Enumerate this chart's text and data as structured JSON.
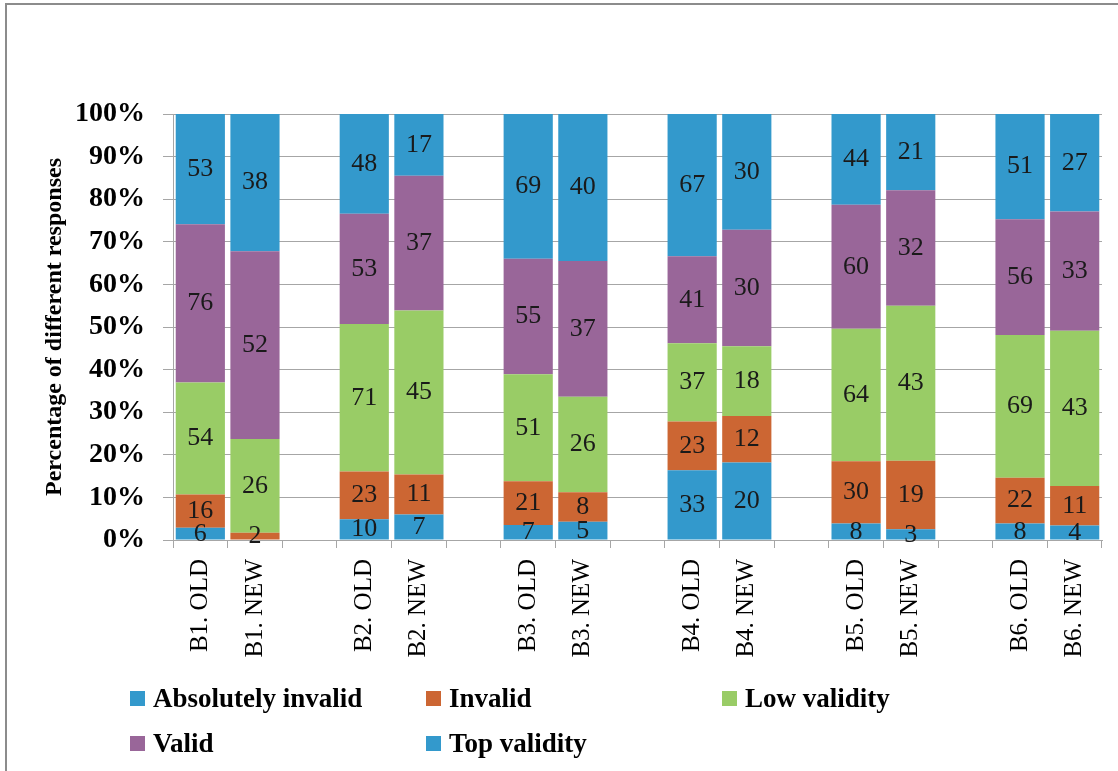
{
  "chart_data": {
    "type": "bar",
    "stacked": true,
    "ylabel": "Percentage of different responses",
    "categories": [
      "B1. OLD",
      "B1. NEW",
      null,
      "B2. OLD",
      "B2. NEW",
      null,
      "B3. OLD",
      "B3. NEW",
      null,
      "B4. OLD",
      "B4. NEW",
      null,
      "B5. OLD",
      "B5. NEW",
      null,
      "B6. OLD",
      "B6. NEW"
    ],
    "series": [
      {
        "name": "Absolutely invalid",
        "color": "#3399cc",
        "values": [
          2.9,
          0,
          null,
          4.9,
          6.0,
          null,
          3.5,
          4.3,
          null,
          16.4,
          18.2,
          null,
          3.9,
          2.5,
          null,
          3.9,
          3.4
        ]
      },
      {
        "name": "Invalid",
        "color": "#cc6633",
        "values": [
          7.8,
          1.7,
          null,
          11.2,
          9.4,
          null,
          10.3,
          6.9,
          null,
          11.4,
          10.9,
          null,
          14.6,
          16.1,
          null,
          10.7,
          9.3
        ]
      },
      {
        "name": "Low validity",
        "color": "#99cc66",
        "values": [
          26.3,
          22.0,
          null,
          34.6,
          38.5,
          null,
          25.1,
          22.4,
          null,
          18.4,
          16.4,
          null,
          31.1,
          36.4,
          null,
          33.5,
          36.4
        ]
      },
      {
        "name": "Valid",
        "color": "#996699",
        "values": [
          37.1,
          44.1,
          null,
          25.9,
          31.6,
          null,
          27.1,
          31.9,
          null,
          20.4,
          27.3,
          null,
          29.1,
          27.1,
          null,
          27.2,
          28.0
        ]
      },
      {
        "name": "Top validity",
        "color": "#3399cc",
        "values": [
          25.9,
          32.2,
          null,
          23.4,
          14.5,
          null,
          34.0,
          34.5,
          null,
          33.4,
          27.2,
          null,
          21.3,
          17.9,
          null,
          24.7,
          22.9
        ]
      }
    ],
    "ylim": [
      0,
      100
    ],
    "yticks": [
      {
        "value": 0,
        "label": "0%"
      },
      {
        "value": 10,
        "label": "10%"
      },
      {
        "value": 20,
        "label": "20%"
      },
      {
        "value": 30,
        "label": "30%"
      },
      {
        "value": 40,
        "label": "40%"
      },
      {
        "value": 50,
        "label": "50%"
      },
      {
        "value": 60,
        "label": "60%"
      },
      {
        "value": 70,
        "label": "70%"
      },
      {
        "value": 80,
        "label": "80%"
      },
      {
        "value": 90,
        "label": "90%"
      },
      {
        "value": 100,
        "label": "100%"
      }
    ],
    "annotations": [
      {
        "text": "6",
        "x": "B1. OLD",
        "y": 2.9
      },
      {
        "text": "16",
        "x": "B1. OLD",
        "y": 10.7
      },
      {
        "text": "54",
        "x": "B1. OLD",
        "y": 37.0
      },
      {
        "text": "76",
        "x": "B1. OLD",
        "y": 74.1
      },
      {
        "text": "53",
        "x": "B1. OLD",
        "y": 100
      },
      {
        "text": "2",
        "x": "B1. NEW",
        "y": 1.7
      },
      {
        "text": "26",
        "x": "B1. NEW",
        "y": 23.7
      },
      {
        "text": "52",
        "x": "B1. NEW",
        "y": 67.8
      },
      {
        "text": "38",
        "x": "B1. NEW",
        "y": 100
      },
      {
        "text": "10",
        "x": "B2. OLD",
        "y": 4.9
      },
      {
        "text": "23",
        "x": "B2. OLD",
        "y": 16.1
      },
      {
        "text": "71",
        "x": "B2. OLD",
        "y": 50.7
      },
      {
        "text": "53",
        "x": "B2. OLD",
        "y": 76.6
      },
      {
        "text": "48",
        "x": "B2. OLD",
        "y": 100
      },
      {
        "text": "7",
        "x": "B2. NEW",
        "y": 6.0
      },
      {
        "text": "11",
        "x": "B2. NEW",
        "y": 15.4
      },
      {
        "text": "45",
        "x": "B2. NEW",
        "y": 53.9
      },
      {
        "text": "37",
        "x": "B2. NEW",
        "y": 85.5
      },
      {
        "text": "17",
        "x": "B2. NEW",
        "y": 100
      },
      {
        "text": "7",
        "x": "B3. OLD",
        "y": 3.5
      },
      {
        "text": "21",
        "x": "B3. OLD",
        "y": 13.8
      },
      {
        "text": "51",
        "x": "B3. OLD",
        "y": 38.9
      },
      {
        "text": "55",
        "x": "B3. OLD",
        "y": 66.0
      },
      {
        "text": "69",
        "x": "B3. OLD",
        "y": 100
      },
      {
        "text": "5",
        "x": "B3. NEW",
        "y": 4.3
      },
      {
        "text": "8",
        "x": "B3. NEW",
        "y": 11.2
      },
      {
        "text": "26",
        "x": "B3. NEW",
        "y": 33.6
      },
      {
        "text": "37",
        "x": "B3. NEW",
        "y": 65.5
      },
      {
        "text": "40",
        "x": "B3. NEW",
        "y": 100
      },
      {
        "text": "33",
        "x": "B4. OLD",
        "y": 16.4
      },
      {
        "text": "23",
        "x": "B4. OLD",
        "y": 27.8
      },
      {
        "text": "37",
        "x": "B4. OLD",
        "y": 46.2
      },
      {
        "text": "41",
        "x": "B4. OLD",
        "y": 66.6
      },
      {
        "text": "67",
        "x": "B4. OLD",
        "y": 100
      },
      {
        "text": "20",
        "x": "B4. NEW",
        "y": 18.2
      },
      {
        "text": "12",
        "x": "B4. NEW",
        "y": 29.1
      },
      {
        "text": "18",
        "x": "B4. NEW",
        "y": 45.5
      },
      {
        "text": "30",
        "x": "B4. NEW",
        "y": 72.8
      },
      {
        "text": "30",
        "x": "B4. NEW",
        "y": 100
      },
      {
        "text": "8",
        "x": "B5. OLD",
        "y": 3.9
      },
      {
        "text": "30",
        "x": "B5. OLD",
        "y": 18.5
      },
      {
        "text": "64",
        "x": "B5. OLD",
        "y": 49.6
      },
      {
        "text": "60",
        "x": "B5. OLD",
        "y": 78.7
      },
      {
        "text": "44",
        "x": "B5. OLD",
        "y": 100
      },
      {
        "text": "3",
        "x": "B5. NEW",
        "y": 2.5
      },
      {
        "text": "19",
        "x": "B5. NEW",
        "y": 18.6
      },
      {
        "text": "43",
        "x": "B5. NEW",
        "y": 55.0
      },
      {
        "text": "32",
        "x": "B5. NEW",
        "y": 82.1
      },
      {
        "text": "21",
        "x": "B5. NEW",
        "y": 100
      },
      {
        "text": "8",
        "x": "B6. OLD",
        "y": 3.9
      },
      {
        "text": "22",
        "x": "B6. OLD",
        "y": 14.6
      },
      {
        "text": "69",
        "x": "B6. OLD",
        "y": 48.1
      },
      {
        "text": "56",
        "x": "B6. OLD",
        "y": 75.3
      },
      {
        "text": "51",
        "x": "B6. OLD",
        "y": 100
      },
      {
        "text": "4",
        "x": "B6. NEW",
        "y": 3.4
      },
      {
        "text": "11",
        "x": "B6. NEW",
        "y": 12.7
      },
      {
        "text": "43",
        "x": "B6. NEW",
        "y": 49.1
      },
      {
        "text": "33",
        "x": "B6. NEW",
        "y": 77.1
      },
      {
        "text": "27",
        "x": "B6. NEW",
        "y": 100
      }
    ],
    "grid": "y",
    "legend": "bottom"
  }
}
